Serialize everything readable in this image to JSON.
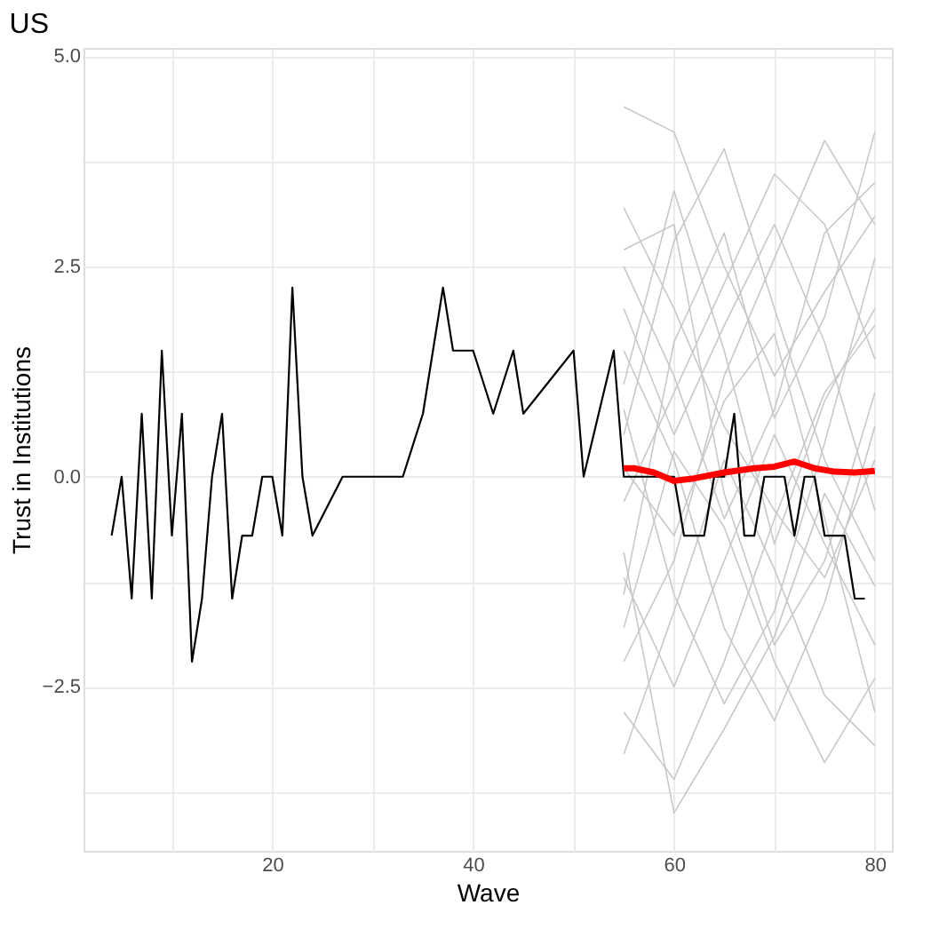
{
  "chart_data": {
    "type": "line",
    "title": "US",
    "xlabel": "Wave",
    "ylabel": "Trust in Institutions",
    "xlim": [
      1.2,
      81.7
    ],
    "ylim": [
      -4.45,
      5.1
    ],
    "xticks": [
      {
        "value": 10,
        "label": null
      },
      20,
      {
        "value": 30,
        "label": null
      },
      40,
      {
        "value": 50,
        "label": null
      },
      60,
      {
        "value": 70,
        "label": null
      },
      80
    ],
    "yticks": [
      {
        "value": -3.75,
        "label": null
      },
      {
        "value": -2.5,
        "label": "−2.5"
      },
      {
        "value": -1.25,
        "label": null
      },
      {
        "value": 0,
        "label": "0.0"
      },
      {
        "value": 1.25,
        "label": null
      },
      2.5,
      {
        "value": 3.75,
        "label": null
      },
      {
        "value": 5,
        "label": "5.0"
      }
    ],
    "grid": true,
    "marker": "none",
    "line_style": "solid",
    "series": [
      {
        "color": "#c8c8c8",
        "x": [
          55,
          60,
          65,
          70,
          75,
          80
        ],
        "values": [
          2.5,
          1.2,
          -0.5,
          0.8,
          2.9,
          3.5
        ]
      },
      {
        "color": "#c8c8c8",
        "x": [
          55,
          60,
          65,
          70,
          75,
          80
        ],
        "values": [
          -1.2,
          -2.5,
          -1.0,
          0.5,
          -0.8,
          -2.0
        ]
      },
      {
        "color": "#c8c8c8",
        "x": [
          55,
          60,
          65,
          70,
          75,
          80
        ],
        "values": [
          0.5,
          2.8,
          3.9,
          2.0,
          0.2,
          -1.0
        ]
      },
      {
        "color": "#c8c8c8",
        "x": [
          55,
          60,
          65,
          70,
          75,
          80
        ],
        "values": [
          -2.8,
          -3.6,
          -2.2,
          -0.5,
          1.0,
          1.8
        ]
      },
      {
        "color": "#c8c8c8",
        "x": [
          55,
          60,
          65,
          70,
          75,
          80
        ],
        "values": [
          1.5,
          0.2,
          -1.8,
          -2.9,
          -1.5,
          0.6
        ]
      },
      {
        "color": "#c8c8c8",
        "x": [
          55,
          60,
          65,
          70,
          75,
          80
        ],
        "values": [
          4.4,
          4.1,
          2.5,
          1.2,
          2.2,
          3.1
        ]
      },
      {
        "color": "#c8c8c8",
        "x": [
          55,
          60,
          65,
          70,
          75,
          80
        ],
        "values": [
          -0.3,
          1.0,
          2.3,
          3.6,
          3.0,
          1.4
        ]
      },
      {
        "color": "#c8c8c8",
        "x": [
          55,
          60,
          65,
          70,
          75,
          80
        ],
        "values": [
          -3.3,
          -1.6,
          0.2,
          -1.1,
          -2.6,
          -3.2
        ]
      },
      {
        "color": "#c8c8c8",
        "x": [
          55,
          60,
          65,
          70,
          75,
          80
        ],
        "values": [
          2.0,
          0.5,
          1.8,
          3.0,
          1.6,
          -0.4
        ]
      },
      {
        "color": "#c8c8c8",
        "x": [
          55,
          60,
          65,
          70,
          75,
          80
        ],
        "values": [
          -1.8,
          0.3,
          -0.6,
          -2.2,
          -3.4,
          -2.4
        ]
      },
      {
        "color": "#c8c8c8",
        "x": [
          55,
          60,
          65,
          70,
          75,
          80
        ],
        "values": [
          0.8,
          -1.4,
          -2.7,
          -1.6,
          0.4,
          2.6
        ]
      },
      {
        "color": "#c8c8c8",
        "x": [
          55,
          60,
          65,
          70,
          75,
          80
        ],
        "values": [
          3.2,
          2.0,
          0.6,
          -0.4,
          -1.2,
          0.2
        ]
      },
      {
        "color": "#c8c8c8",
        "x": [
          55,
          60,
          65,
          70,
          75,
          80
        ],
        "values": [
          -0.9,
          -4.0,
          -3.0,
          -1.9,
          -0.2,
          -1.3
        ]
      },
      {
        "color": "#c8c8c8",
        "x": [
          55,
          60,
          65,
          70,
          75,
          80
        ],
        "values": [
          1.1,
          3.4,
          1.5,
          -0.8,
          0.9,
          2.0
        ]
      },
      {
        "color": "#c8c8c8",
        "x": [
          55,
          60,
          65,
          70,
          75,
          80
        ],
        "values": [
          -2.2,
          -1.0,
          1.2,
          2.6,
          4.0,
          3.0
        ]
      },
      {
        "color": "#c8c8c8",
        "x": [
          55,
          60,
          65,
          70,
          75,
          80
        ],
        "values": [
          0.1,
          -0.7,
          0.9,
          1.7,
          -0.5,
          -2.8
        ]
      },
      {
        "color": "#c8c8c8",
        "x": [
          55,
          60,
          65,
          70,
          75,
          80
        ],
        "values": [
          2.7,
          3.0,
          -0.2,
          -2.0,
          -1.0,
          1.0
        ]
      },
      {
        "color": "#c8c8c8",
        "x": [
          55,
          60,
          65,
          70,
          75,
          80
        ],
        "values": [
          -1.4,
          1.6,
          2.9,
          0.7,
          1.9,
          4.1
        ]
      },
      {
        "color": "#000000",
        "x": [
          4,
          5,
          6,
          7,
          8,
          9,
          10,
          11,
          12,
          13,
          14,
          15,
          16,
          17,
          18,
          19,
          20,
          21,
          22,
          23,
          24,
          27,
          33,
          35,
          37,
          38,
          40,
          42,
          44,
          45,
          50,
          51,
          54,
          55,
          60,
          61,
          63,
          64,
          65,
          66,
          67,
          68,
          69,
          71,
          72,
          73,
          74,
          75,
          77,
          78,
          79
        ],
        "values": [
          -0.7,
          0,
          -1.45,
          0.75,
          -1.45,
          1.5,
          -0.7,
          0.75,
          -2.2,
          -1.45,
          0,
          0.75,
          -1.45,
          -0.7,
          -0.7,
          0,
          0,
          -0.7,
          2.25,
          0,
          -0.7,
          0,
          0,
          0.75,
          2.25,
          1.5,
          1.5,
          0.75,
          1.5,
          0.75,
          1.5,
          0,
          1.5,
          0,
          0,
          -0.7,
          -0.7,
          0,
          0,
          0.75,
          -0.7,
          -0.7,
          0,
          0,
          -0.7,
          0,
          0,
          -0.7,
          -0.7,
          -1.45,
          -1.45
        ]
      },
      {
        "color": "#ff0000",
        "x": [
          55,
          56,
          58,
          60,
          62,
          65,
          68,
          70,
          72,
          74,
          76,
          78,
          80
        ],
        "values": [
          0.1,
          0.1,
          0.05,
          -0.05,
          -0.02,
          0.05,
          0.1,
          0.12,
          0.18,
          0.1,
          0.06,
          0.05,
          0.07
        ]
      }
    ]
  }
}
